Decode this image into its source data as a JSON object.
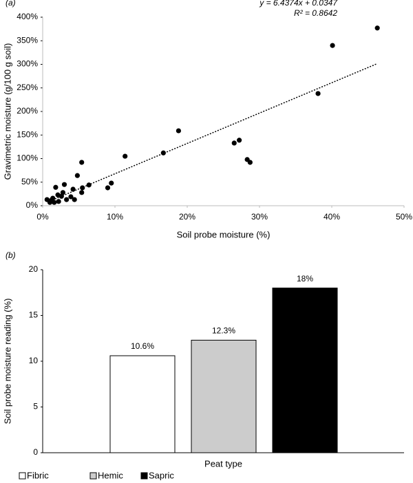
{
  "chart_data": [
    {
      "type": "scatter",
      "label": "(a)",
      "annotations": [
        "y = 6.4374x + 0.0347",
        "R² = 0.8642"
      ],
      "xlabel": "Soil probe moisture (%)",
      "ylabel": "Gravimetric moisture (g/100 g soil)",
      "x": [
        46.3,
        40.1,
        38.1,
        18.8,
        16.7,
        11.4,
        26.5,
        27.2,
        28.3,
        28.7,
        9.5,
        9.0,
        5.4,
        4.8,
        5.5,
        5.4,
        6.4,
        4.2,
        3.0,
        1.8,
        2.8,
        2.6,
        3.9,
        4.4,
        3.3,
        2.1,
        1.4,
        1.0,
        0.6,
        1.0,
        1.6,
        2.2,
        1.3
      ],
      "values": [
        377,
        340,
        238,
        159,
        112,
        105,
        133,
        139,
        98,
        92,
        48,
        38,
        92,
        64,
        38,
        28,
        44,
        35,
        45,
        39,
        28,
        20,
        19,
        13,
        13,
        23,
        16,
        10,
        13,
        7,
        7,
        9,
        13
      ],
      "color": "#000000",
      "xlim": [
        0,
        50
      ],
      "ylim": [
        0,
        400
      ],
      "xticks": [
        {
          "value": 0,
          "label": "0%"
        },
        {
          "value": 10,
          "label": "10%"
        },
        {
          "value": 20,
          "label": "20%"
        },
        {
          "value": 30,
          "label": "30%"
        },
        {
          "value": 40,
          "label": "40%"
        },
        {
          "value": 50,
          "label": "50%"
        }
      ],
      "yticks": [
        {
          "value": 0,
          "label": "0%"
        },
        {
          "value": 50,
          "label": "50%"
        },
        {
          "value": 100,
          "label": "100%"
        },
        {
          "value": 150,
          "label": "150%"
        },
        {
          "value": 200,
          "label": "200%"
        },
        {
          "value": 250,
          "label": "250%"
        },
        {
          "value": 300,
          "label": "300%"
        },
        {
          "value": 350,
          "label": "350%"
        },
        {
          "value": 400,
          "label": "400%"
        }
      ],
      "trendline": {
        "x": [
          1,
          46.3
        ],
        "values": [
          9.9,
          301.5
        ],
        "style": "dotted"
      }
    },
    {
      "type": "bar",
      "label": "(b)",
      "xlabel": "Peat type",
      "ylabel": "Soil probe moisture reading (%)",
      "categories": [
        "Fibric",
        "Hemic",
        "Sapric"
      ],
      "values": [
        10.6,
        12.3,
        18
      ],
      "value_labels": [
        "10.6%",
        "12.3%",
        "18%"
      ],
      "colors": [
        "#ffffff",
        "#cccccc",
        "#000000"
      ],
      "ylim": [
        0,
        20
      ],
      "yticks": [
        0,
        5,
        10,
        15,
        20
      ],
      "legend": "bottom-left"
    }
  ]
}
